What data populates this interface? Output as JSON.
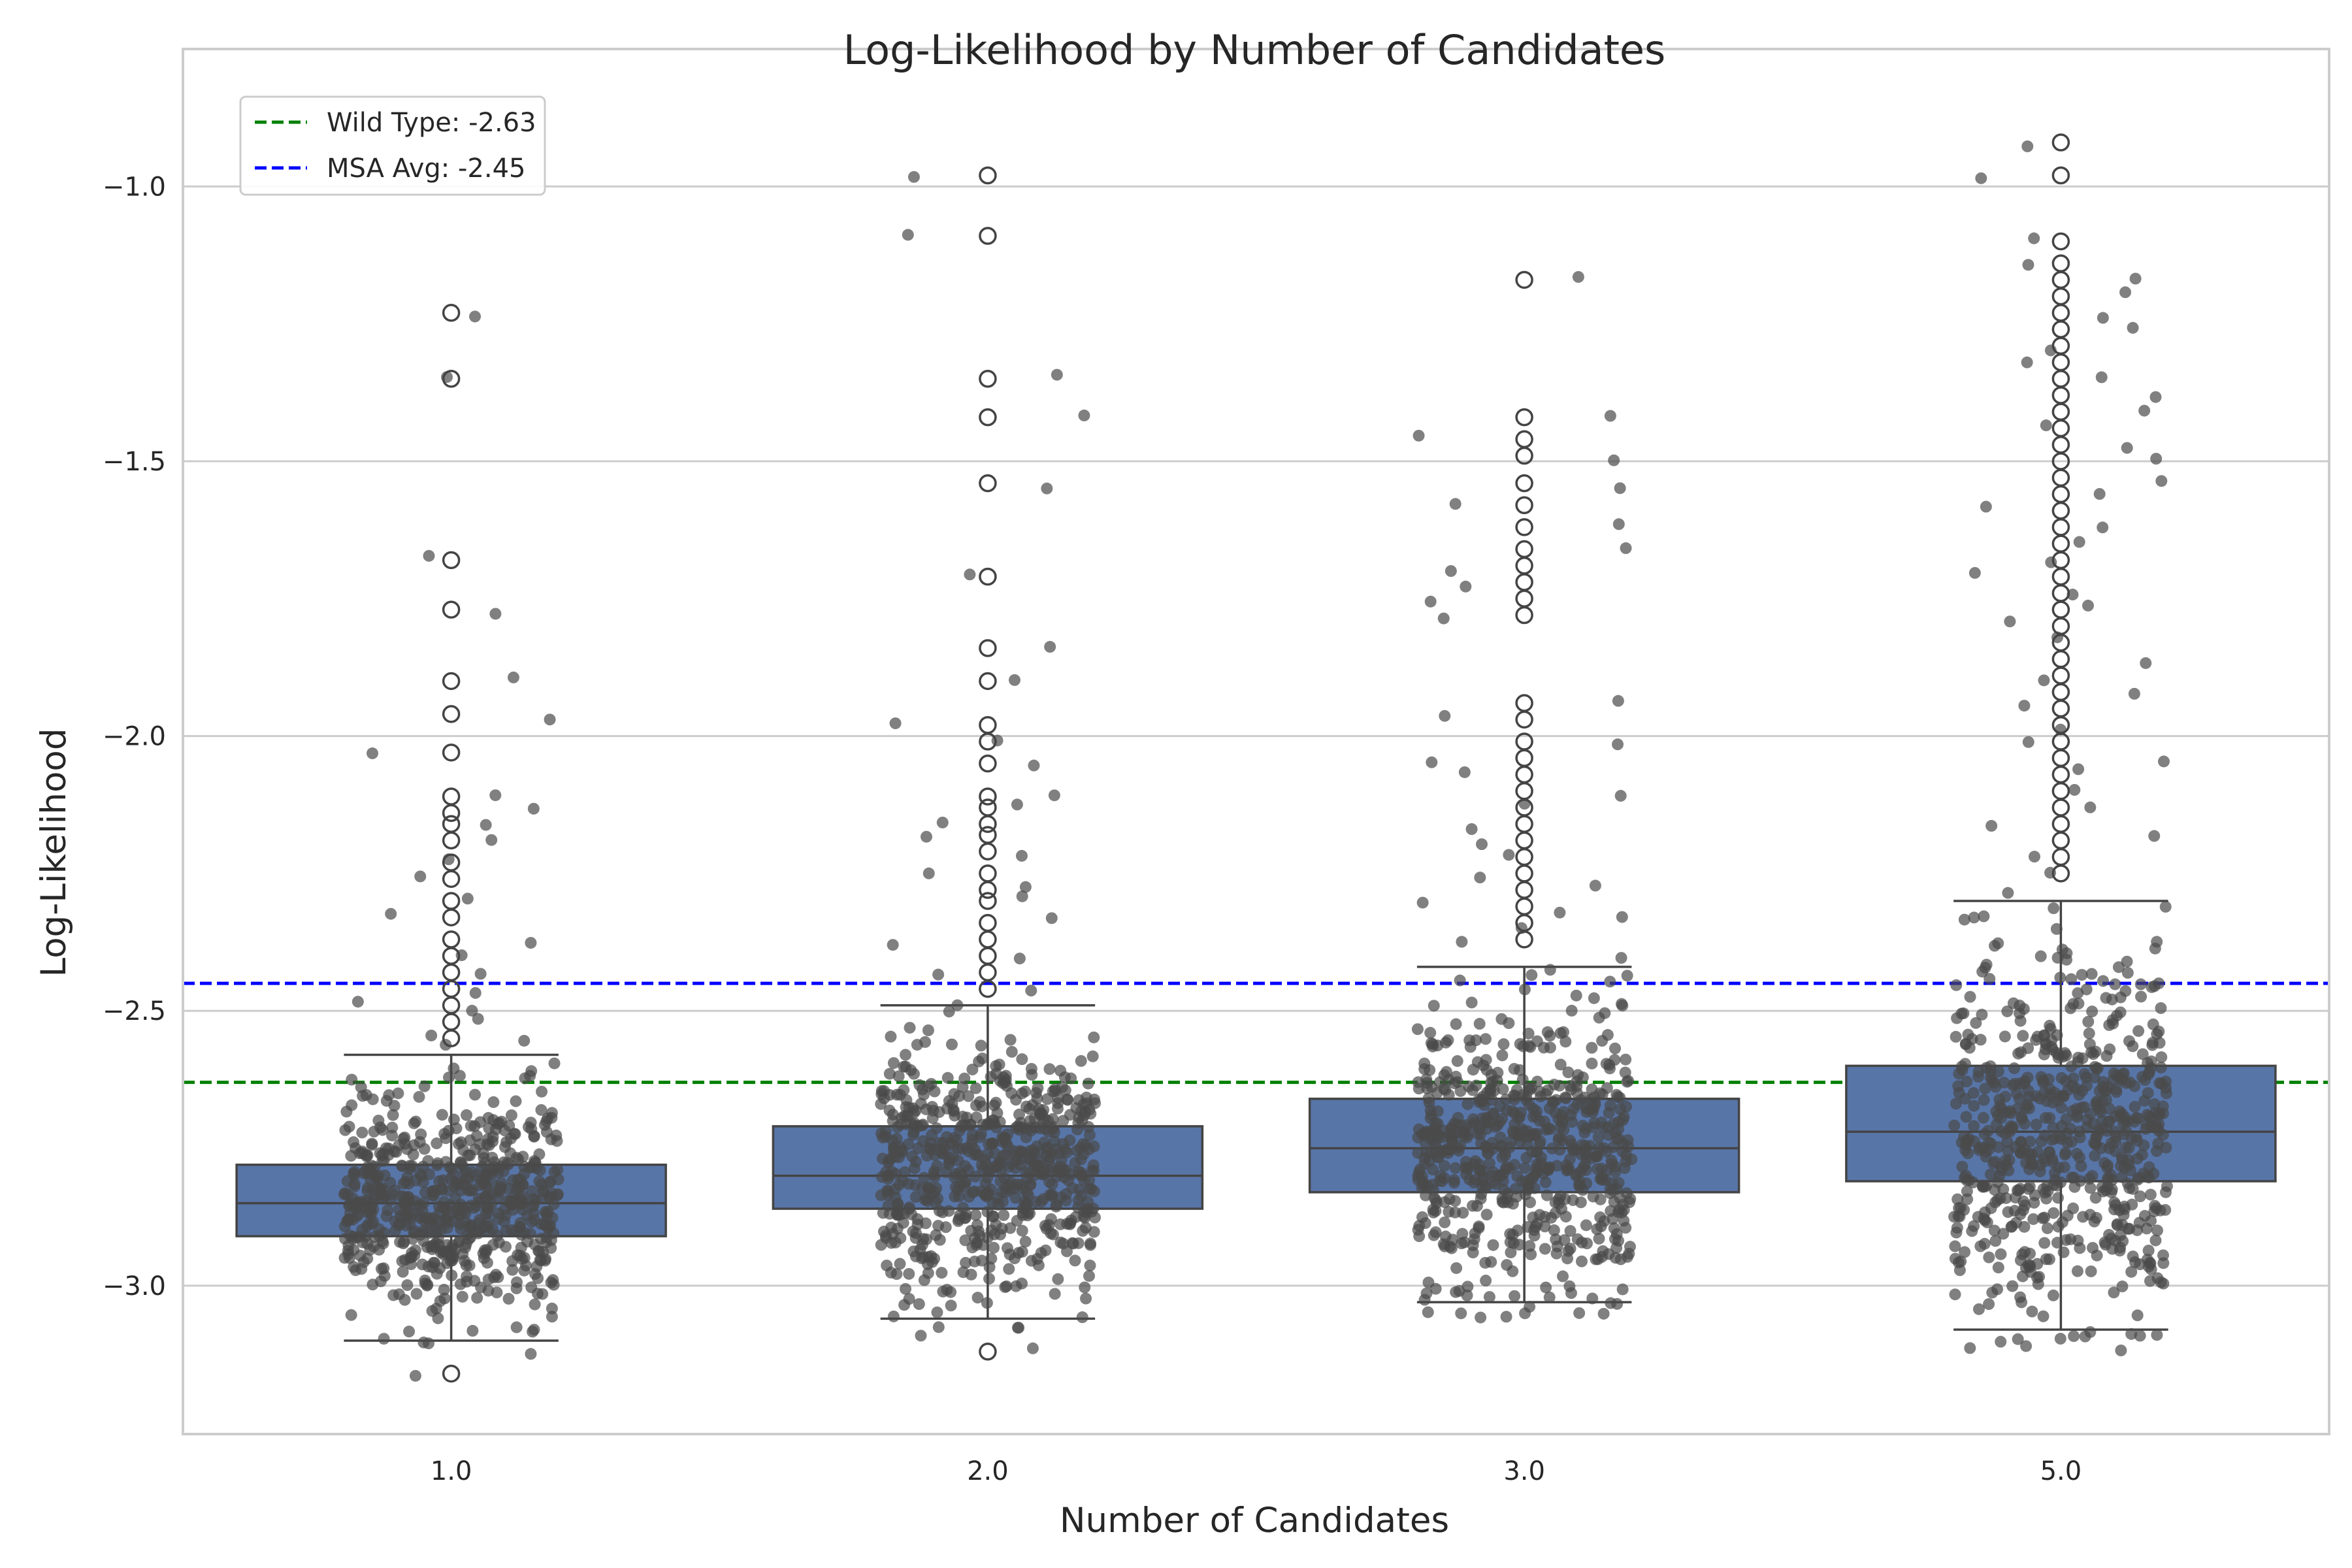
{
  "chart_data": {
    "type": "box",
    "title": "Log-Likelihood by Number of Candidates",
    "xlabel": "Number of Candidates",
    "ylabel": "Log-Likelihood",
    "categories": [
      "1.0",
      "2.0",
      "3.0",
      "5.0"
    ],
    "ylim": [
      -3.27,
      -0.75
    ],
    "yticks": [
      -3.0,
      -2.5,
      -2.0,
      -1.5,
      -1.0
    ],
    "ytick_labels": [
      "−3.0",
      "−2.5",
      "−2.0",
      "−1.5",
      "−1.0"
    ],
    "grid": true,
    "legend_position": "top-left",
    "box_color": "#5875a8",
    "point_color": "#4a4a4a",
    "boxes": [
      {
        "category": "1.0",
        "whisker_low": -3.1,
        "q1": -2.91,
        "median": -2.85,
        "q3": -2.78,
        "whisker_high": -2.58,
        "outliers": [
          -1.23,
          -1.35,
          -1.68,
          -1.77,
          -1.9,
          -1.96,
          -2.03,
          -2.11,
          -2.14,
          -2.16,
          -2.19,
          -2.23,
          -2.26,
          -2.3,
          -2.33,
          -2.37,
          -2.4,
          -2.43,
          -2.46,
          -2.49,
          -2.52,
          -2.55,
          -3.16
        ]
      },
      {
        "category": "2.0",
        "whisker_low": -3.06,
        "q1": -2.86,
        "median": -2.8,
        "q3": -2.71,
        "whisker_high": -2.49,
        "outliers": [
          -0.98,
          -1.09,
          -1.35,
          -1.42,
          -1.54,
          -1.71,
          -1.84,
          -1.9,
          -1.98,
          -2.01,
          -2.05,
          -2.11,
          -2.13,
          -2.16,
          -2.18,
          -2.21,
          -2.25,
          -2.28,
          -2.3,
          -2.34,
          -2.37,
          -2.4,
          -2.43,
          -2.46,
          -3.12
        ]
      },
      {
        "category": "3.0",
        "whisker_low": -3.03,
        "q1": -2.83,
        "median": -2.75,
        "q3": -2.66,
        "whisker_high": -2.42,
        "outliers": [
          -1.17,
          -1.42,
          -1.46,
          -1.49,
          -1.54,
          -1.58,
          -1.62,
          -1.66,
          -1.69,
          -1.72,
          -1.75,
          -1.78,
          -1.94,
          -1.97,
          -2.01,
          -2.04,
          -2.07,
          -2.1,
          -2.13,
          -2.16,
          -2.19,
          -2.22,
          -2.25,
          -2.28,
          -2.31,
          -2.34,
          -2.37
        ]
      },
      {
        "category": "5.0",
        "whisker_low": -3.08,
        "q1": -2.81,
        "median": -2.72,
        "q3": -2.6,
        "whisker_high": -2.3,
        "outliers": [
          -0.92,
          -0.98,
          -1.1,
          -1.14,
          -1.17,
          -1.2,
          -1.23,
          -1.26,
          -1.29,
          -1.32,
          -1.35,
          -1.38,
          -1.41,
          -1.44,
          -1.47,
          -1.5,
          -1.53,
          -1.56,
          -1.59,
          -1.62,
          -1.65,
          -1.68,
          -1.71,
          -1.74,
          -1.77,
          -1.8,
          -1.83,
          -1.86,
          -1.89,
          -1.92,
          -1.95,
          -1.98,
          -2.01,
          -2.04,
          -2.07,
          -2.1,
          -2.13,
          -2.16,
          -2.19,
          -2.22,
          -2.25
        ]
      }
    ],
    "reference_lines": [
      {
        "label": "Wild Type: -2.63",
        "value": -2.63,
        "color": "#008000",
        "style": "dashed"
      },
      {
        "label": "MSA Avg: -2.45",
        "value": -2.45,
        "color": "#0000ff",
        "style": "dashed"
      }
    ]
  }
}
